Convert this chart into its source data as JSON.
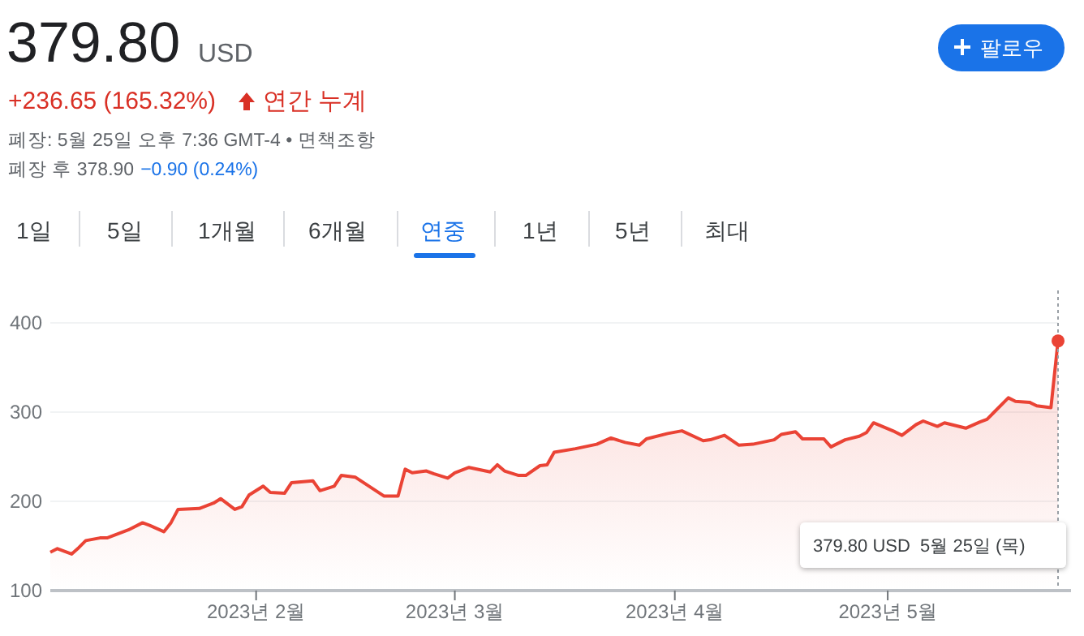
{
  "chart_data": {
    "type": "area",
    "title": "379.80",
    "subtitle": "USD",
    "x": [
      "2023-01-03",
      "2023-01-04",
      "2023-01-06",
      "2023-01-07",
      "2023-01-08",
      "2023-01-10",
      "2023-01-11",
      "2023-01-14",
      "2023-01-16",
      "2023-01-17",
      "2023-01-19",
      "2023-01-20",
      "2023-01-21",
      "2023-01-24",
      "2023-01-26",
      "2023-01-27",
      "2023-01-29",
      "2023-01-30",
      "2023-01-31",
      "2023-02-02",
      "2023-02-03",
      "2023-02-05",
      "2023-02-06",
      "2023-02-09",
      "2023-02-10",
      "2023-02-12",
      "2023-02-13",
      "2023-02-15",
      "2023-02-19",
      "2023-02-21",
      "2023-02-22",
      "2023-02-23",
      "2023-02-25",
      "2023-02-26",
      "2023-02-28",
      "2023-03-01",
      "2023-03-03",
      "2023-03-06",
      "2023-03-07",
      "2023-03-08",
      "2023-03-10",
      "2023-03-11",
      "2023-03-13",
      "2023-03-14",
      "2023-03-15",
      "2023-03-18",
      "2023-03-21",
      "2023-03-23",
      "2023-03-25",
      "2023-03-27",
      "2023-03-28",
      "2023-03-31",
      "2023-04-02",
      "2023-04-05",
      "2023-04-06",
      "2023-04-08",
      "2023-04-10",
      "2023-04-12",
      "2023-04-15",
      "2023-04-16",
      "2023-04-18",
      "2023-04-19",
      "2023-04-22",
      "2023-04-23",
      "2023-04-25",
      "2023-04-27",
      "2023-04-28",
      "2023-04-29",
      "2023-05-02",
      "2023-05-03",
      "2023-05-05",
      "2023-05-06",
      "2023-05-08",
      "2023-05-09",
      "2023-05-12",
      "2023-05-14",
      "2023-05-15",
      "2023-05-16",
      "2023-05-18",
      "2023-05-19",
      "2023-05-21",
      "2023-05-22",
      "2023-05-24",
      "2023-05-25"
    ],
    "series": [
      {
        "color": "#ea4335",
        "values": [
          143,
          147,
          141,
          148,
          156,
          159,
          159,
          168,
          176,
          173,
          166,
          176,
          191,
          192,
          198,
          203,
          191,
          194,
          207,
          217,
          210,
          209,
          221,
          223,
          212,
          217,
          229,
          227,
          206,
          206,
          236,
          232,
          234,
          231,
          226,
          232,
          238,
          233,
          241,
          234,
          229,
          229,
          240,
          241,
          255,
          259,
          264,
          271,
          266,
          263,
          270,
          276,
          279,
          268,
          269,
          274,
          263,
          264,
          269,
          275,
          278,
          270,
          270,
          261,
          269,
          273,
          277,
          288,
          278,
          274,
          286,
          290,
          284,
          288,
          282,
          289,
          292,
          300,
          316,
          312,
          311,
          307,
          305,
          379.8
        ]
      }
    ],
    "xlim": [
      "2023-01-03",
      "2023-05-25"
    ],
    "xticks": [
      {
        "value": "2023-02-01",
        "label": "2023년 2월"
      },
      {
        "value": "2023-03-01",
        "label": "2023년 3월"
      },
      {
        "value": "2023-04-01",
        "label": "2023년 4월"
      },
      {
        "value": "2023-05-01",
        "label": "2023년 5월"
      }
    ],
    "ylim": [
      100,
      400
    ],
    "yticks": [
      100,
      200,
      300,
      400
    ],
    "grid": "y",
    "ref_lines": [
      {
        "axis": "x",
        "value": "2023-05-25",
        "line_style": "dotted",
        "color": "#9aa0a6"
      }
    ],
    "annotations": [
      "+236.65 (165.32%)",
      "연간 누계",
      "폐장: 5월 25일 오후 7:36 GMT-4 • 면책조항",
      "폐장 후 378.90",
      "−0.90 (0.24%)",
      "1일",
      "5일",
      "1개월",
      "6개월",
      "연중",
      "1년",
      "5년",
      "최대",
      "팔로우",
      "379.80 USD  5월 25일 (목)"
    ]
  }
}
